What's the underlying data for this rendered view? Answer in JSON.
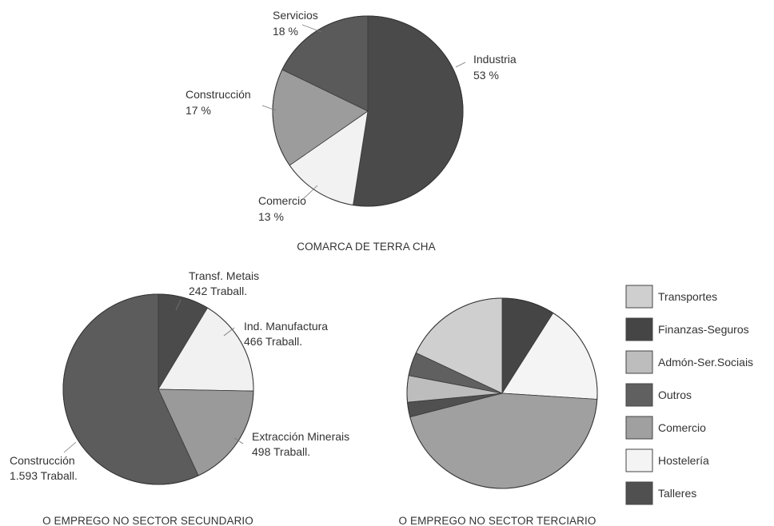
{
  "palette": {
    "Industria": "#4a4a4a",
    "Servicios": "#5a5a5a",
    "Construcción": "#9c9c9c",
    "Comercio": "#f2f2f2",
    "Transf. Metais": "#4b4b4b",
    "Ind. Manufactura": "#f1f1f1",
    "Extracción Minerais": "#9a9a9a",
    "Construcción 2": "#5c5c5c",
    "Transportes": "#cfcfcf",
    "Finanzas-Seguros": "#454545",
    "Admón-Ser.Sociais": "#bdbdbd",
    "Outros": "#606060",
    "Comercio 2": "#a0a0a0",
    "Hostelería": "#f4f4f4",
    "Talleres": "#505050"
  },
  "chart_data": [
    {
      "type": "pie",
      "title": "COMARCA DE TERRA CHA",
      "slices": [
        {
          "name": "Industria",
          "value": 53,
          "label": "Industria",
          "value_label": "53 %"
        },
        {
          "name": "Comercio",
          "value": 13,
          "label": "Comercio",
          "value_label": "13 %"
        },
        {
          "name": "Construcción",
          "value": 17,
          "label": "Construcción",
          "value_label": "17 %"
        },
        {
          "name": "Servicios",
          "value": 18,
          "label": "Servicios",
          "value_label": "18 %"
        }
      ]
    },
    {
      "type": "pie",
      "title": "O EMPREGO NO SECTOR SECUNDARIO",
      "slices": [
        {
          "name": "Transf. Metais",
          "value": 242,
          "label": "Transf. Metais",
          "value_label": "242 Traball."
        },
        {
          "name": "Ind. Manufactura",
          "value": 466,
          "label": "Ind. Manufactura",
          "value_label": "466 Traball."
        },
        {
          "name": "Extracción Minerais",
          "value": 498,
          "label": "Extracción Minerais",
          "value_label": "498 Traball."
        },
        {
          "name": "Construcción 2",
          "value": 1593,
          "label": "Construcción",
          "value_label": "1.593 Traball."
        }
      ]
    },
    {
      "type": "pie",
      "title": "O EMPREGO NO SECTOR TERCIARIO",
      "legend_position": "right",
      "legend": [
        "Transportes",
        "Finanzas-Seguros",
        "Admón-Ser.Sociais",
        "Outros",
        "Comercio",
        "Hostelería",
        "Talleres"
      ],
      "slices": [
        {
          "name": "Finanzas-Seguros",
          "value": 9
        },
        {
          "name": "Hostelería",
          "value": 17
        },
        {
          "name": "Comercio 2",
          "value": 45
        },
        {
          "name": "Talleres",
          "value": 2.5
        },
        {
          "name": "Admón-Ser.Sociais",
          "value": 4.5
        },
        {
          "name": "Outros",
          "value": 4
        },
        {
          "name": "Transportes",
          "value": 18
        }
      ]
    }
  ]
}
